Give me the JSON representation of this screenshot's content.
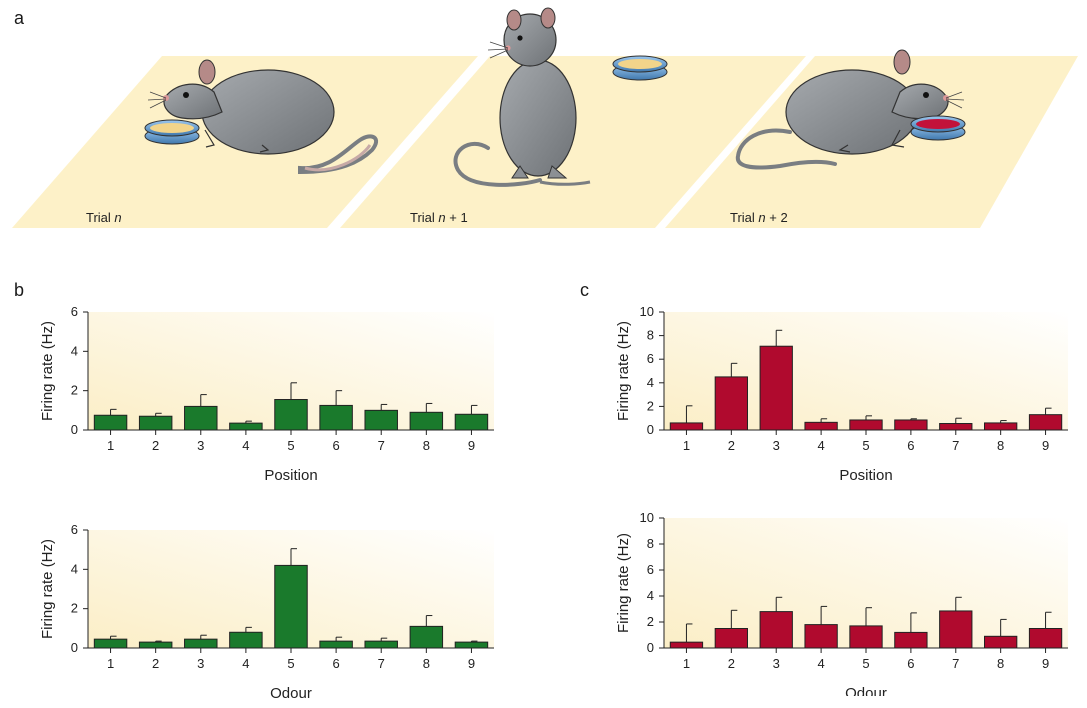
{
  "panel_labels": {
    "a": "a",
    "b": "b",
    "c": "c"
  },
  "trials": [
    {
      "prefix": "Trial ",
      "var": "n",
      "suffix": ""
    },
    {
      "prefix": "Trial ",
      "var": "n",
      "suffix": " + 1"
    },
    {
      "prefix": "Trial ",
      "var": "n",
      "suffix": " + 2"
    }
  ],
  "colors": {
    "green": "#1a7a2c",
    "red": "#b00a2e",
    "floor": "#fdf1c8",
    "rat": "#8c9094",
    "dish_plain": "#f2d48a",
    "dish_red": "#c2123a"
  },
  "chart_data": [
    {
      "id": "b-position",
      "type": "bar",
      "ylabel": "Firing rate (Hz)",
      "xlabel": "Position",
      "categories": [
        "1",
        "2",
        "3",
        "4",
        "5",
        "6",
        "7",
        "8",
        "9"
      ],
      "values": [
        0.75,
        0.7,
        1.2,
        0.35,
        1.55,
        1.25,
        1.0,
        0.9,
        0.8
      ],
      "errors": [
        0.3,
        0.15,
        0.6,
        0.1,
        0.85,
        0.75,
        0.3,
        0.45,
        0.45
      ],
      "ylim": [
        0,
        6
      ],
      "yticks": [
        "0",
        "2",
        "4",
        "6"
      ],
      "color": "#1a7a2c"
    },
    {
      "id": "b-odour",
      "type": "bar",
      "ylabel": "Firing rate (Hz)",
      "xlabel": "Odour",
      "categories": [
        "1",
        "2",
        "3",
        "4",
        "5",
        "6",
        "7",
        "8",
        "9"
      ],
      "values": [
        0.45,
        0.3,
        0.45,
        0.8,
        4.2,
        0.35,
        0.35,
        1.1,
        0.3
      ],
      "errors": [
        0.15,
        0.05,
        0.2,
        0.25,
        0.85,
        0.2,
        0.15,
        0.55,
        0.05
      ],
      "ylim": [
        0,
        6
      ],
      "yticks": [
        "0",
        "2",
        "4",
        "6"
      ],
      "color": "#1a7a2c"
    },
    {
      "id": "c-position",
      "type": "bar",
      "ylabel": "Firing rate (Hz)",
      "xlabel": "Position",
      "categories": [
        "1",
        "2",
        "3",
        "4",
        "5",
        "6",
        "7",
        "8",
        "9"
      ],
      "values": [
        0.6,
        4.5,
        7.1,
        0.65,
        0.85,
        0.85,
        0.55,
        0.6,
        1.3
      ],
      "errors": [
        1.45,
        1.15,
        1.35,
        0.3,
        0.35,
        0.1,
        0.45,
        0.2,
        0.55
      ],
      "ylim": [
        0,
        10
      ],
      "yticks": [
        "0",
        "2",
        "4",
        "6",
        "8",
        "10"
      ],
      "color": "#b00a2e"
    },
    {
      "id": "c-odour",
      "type": "bar",
      "ylabel": "Firing rate (Hz)",
      "xlabel": "Odour",
      "categories": [
        "1",
        "2",
        "3",
        "4",
        "5",
        "6",
        "7",
        "8",
        "9"
      ],
      "values": [
        0.45,
        1.5,
        2.8,
        1.8,
        1.7,
        1.2,
        2.85,
        0.9,
        1.5
      ],
      "errors": [
        1.4,
        1.4,
        1.1,
        1.4,
        1.4,
        1.5,
        1.05,
        1.3,
        1.25
      ],
      "ylim": [
        0,
        10
      ],
      "yticks": [
        "0",
        "2",
        "4",
        "6",
        "8",
        "10"
      ],
      "color": "#b00a2e"
    }
  ]
}
